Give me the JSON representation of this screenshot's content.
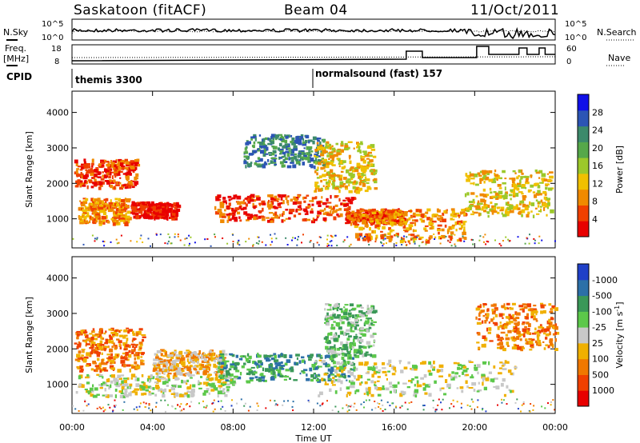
{
  "header": {
    "station": "Saskatoon (fitACF)",
    "beam": "Beam 04",
    "date": "11/Oct/2011"
  },
  "sidebar_labels": {
    "nsky": "N.Sky",
    "freq": "Freq.",
    "freq_unit": "[MHz]",
    "cpid": "CPID",
    "nsearch": "N.Search",
    "nave": "Nave"
  },
  "noise_panel": {
    "left_ticks": [
      "10^5",
      "10^0"
    ],
    "right_ticks": [
      "10^5",
      "10^0"
    ]
  },
  "freq_panel": {
    "left_ticks": [
      "18",
      "8"
    ],
    "right_ticks": [
      "60",
      "0"
    ]
  },
  "cpid_panel": {
    "programs": [
      {
        "label": "themis 3300",
        "start_hour": 0
      },
      {
        "label": "normalsound (fast) 157",
        "start_hour": 12
      }
    ]
  },
  "chart_data": [
    {
      "type": "heatmap",
      "name": "power",
      "ylabel": "Slant Range [km]",
      "yticks": [
        "1000",
        "2000",
        "3000",
        "4000"
      ],
      "ylim": [
        180,
        4600
      ],
      "colorbar_label": "Power [dB]",
      "colorbar_ticks": [
        "4",
        "8",
        "12",
        "16",
        "20",
        "24",
        "28"
      ],
      "colors": [
        "#1010e8",
        "#2c55b5",
        "#3c8a6b",
        "#56a84a",
        "#9cc82a",
        "#f0c000",
        "#f08a00",
        "#f04000",
        "#e80000"
      ],
      "blobs": [
        {
          "h0": 0.1,
          "h1": 3.2,
          "r0": 1900,
          "r1": 2700,
          "level": 7
        },
        {
          "h0": 0.3,
          "h1": 2.8,
          "r0": 900,
          "r1": 1600,
          "level": 6
        },
        {
          "h0": 2.9,
          "h1": 5.2,
          "r0": 1050,
          "r1": 1500,
          "level": 8
        },
        {
          "h0": 7.0,
          "h1": 14.0,
          "r0": 950,
          "r1": 1700,
          "level": 7
        },
        {
          "h0": 13.5,
          "h1": 16.5,
          "r0": 900,
          "r1": 1300,
          "level": 7
        },
        {
          "h0": 14.0,
          "h1": 19.5,
          "r0": 400,
          "r1": 1300,
          "level": 6
        },
        {
          "h0": 19.5,
          "h1": 23.8,
          "r0": 1100,
          "r1": 2400,
          "level": 5
        },
        {
          "h0": 8.5,
          "h1": 12.5,
          "r0": 2500,
          "r1": 3400,
          "level": 2
        },
        {
          "h0": 12.0,
          "h1": 15.0,
          "r0": 1800,
          "r1": 3200,
          "level": 5
        }
      ]
    },
    {
      "type": "heatmap",
      "name": "velocity",
      "ylabel": "Slant Range [km]",
      "yticks": [
        "1000",
        "2000",
        "3000",
        "4000"
      ],
      "ylim": [
        180,
        4600
      ],
      "colorbar_label": "Velocity [m s",
      "colorbar_label_sup": "-1",
      "colorbar_ticks": [
        "1000",
        "500",
        "100",
        "25",
        "-25",
        "-100",
        "-500",
        "-1000"
      ],
      "colors": [
        "#2040c8",
        "#2c70a8",
        "#3a9858",
        "#5cc84a",
        "#c8c8c8",
        "#f0b000",
        "#f07800",
        "#f04000",
        "#e80000"
      ],
      "blobs": [
        {
          "h0": 0.1,
          "h1": 3.5,
          "r0": 1400,
          "r1": 2600,
          "level": 6
        },
        {
          "h0": 0.1,
          "h1": 8.0,
          "r0": 700,
          "r1": 1300,
          "level": 4
        },
        {
          "h0": 4.0,
          "h1": 7.5,
          "r0": 1300,
          "r1": 2000,
          "level": 5
        },
        {
          "h0": 7.2,
          "h1": 14.0,
          "r0": 1100,
          "r1": 1900,
          "level": 2
        },
        {
          "h0": 12.0,
          "h1": 22.0,
          "r0": 700,
          "r1": 1700,
          "level": 4
        },
        {
          "h0": 12.5,
          "h1": 15.0,
          "r0": 1800,
          "r1": 3300,
          "level": 3
        },
        {
          "h0": 20.0,
          "h1": 24.0,
          "r0": 2000,
          "r1": 3300,
          "level": 6
        }
      ]
    }
  ],
  "time_axis": {
    "xlabel": "Time UT",
    "ticks": [
      "00:00",
      "04:00",
      "08:00",
      "12:00",
      "16:00",
      "20:00",
      "00:00"
    ],
    "xlim": [
      0,
      24
    ]
  }
}
